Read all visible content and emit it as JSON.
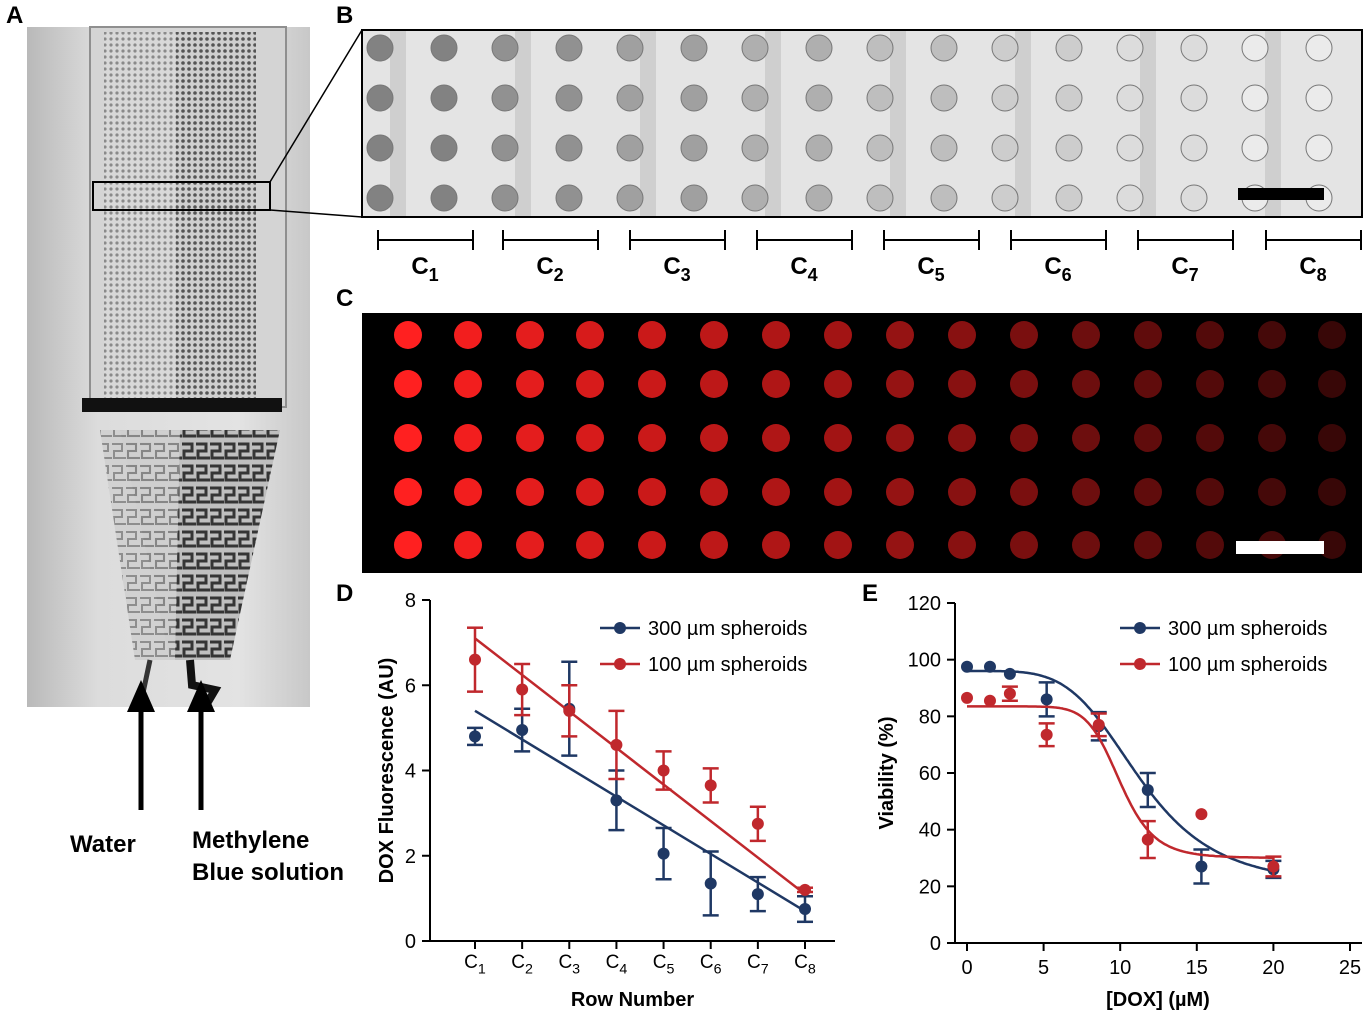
{
  "panels": {
    "a": {
      "label": "A",
      "arrow_labels": [
        "Water",
        "Methylene",
        "Blue solution"
      ]
    },
    "b": {
      "label": "B",
      "columns": [
        "1",
        "2",
        "3",
        "4",
        "5",
        "6",
        "7",
        "8"
      ],
      "column_prefix": "C"
    },
    "c": {
      "label": "C"
    },
    "d": {
      "label": "D"
    },
    "e": {
      "label": "E"
    }
  },
  "colors": {
    "navy": "#1f3864",
    "red": "#c0282d",
    "fluor_red": "#ff2020",
    "black": "#000000"
  },
  "chart_data": [
    {
      "type": "scatter",
      "panel": "D",
      "xlabel": "Row Number",
      "ylabel": "DOX Fluorescence (AU)",
      "categories": [
        "C1",
        "C2",
        "C3",
        "C4",
        "C5",
        "C6",
        "C7",
        "C8"
      ],
      "cat_base": "C",
      "cat_sub": [
        "1",
        "2",
        "3",
        "4",
        "5",
        "6",
        "7",
        "8"
      ],
      "ylim": [
        0,
        8
      ],
      "yticks": [
        0,
        2,
        4,
        6,
        8
      ],
      "legend_position": "top-right",
      "series": [
        {
          "name": "300 µm spheroids",
          "color": "#1f3864",
          "values": [
            4.8,
            4.95,
            5.45,
            3.3,
            2.05,
            1.35,
            1.1,
            0.75
          ],
          "err": [
            0.2,
            0.5,
            1.1,
            0.7,
            0.6,
            0.75,
            0.4,
            0.3
          ],
          "fit": [
            5.4,
            0.7
          ]
        },
        {
          "name": "100 µm spheroids",
          "color": "#c0282d",
          "values": [
            6.6,
            5.9,
            5.4,
            4.6,
            4.0,
            3.65,
            2.75,
            1.2
          ],
          "err": [
            0.75,
            0.6,
            0.6,
            0.8,
            0.45,
            0.4,
            0.4,
            0.05
          ],
          "fit": [
            7.1,
            1.1
          ]
        }
      ]
    },
    {
      "type": "scatter",
      "panel": "E",
      "xlabel": "[DOX] (µM)",
      "ylabel": "Viability (%)",
      "xlim": [
        0,
        25
      ],
      "ylim": [
        0,
        120
      ],
      "xticks": [
        0,
        5,
        10,
        15,
        20,
        25
      ],
      "yticks": [
        0,
        20,
        40,
        60,
        80,
        100,
        120
      ],
      "legend_position": "top-right",
      "series": [
        {
          "name": "300 µm spheroids",
          "color": "#1f3864",
          "x": [
            0,
            1.5,
            2.8,
            5.2,
            8.6,
            11.8,
            15.3,
            20
          ],
          "y": [
            97.5,
            97.5,
            95,
            86,
            76.5,
            54,
            27,
            26
          ],
          "err": [
            0,
            0,
            0,
            6,
            5,
            6,
            6,
            3
          ],
          "fit": {
            "top": 96,
            "bottom": 20,
            "ec50": 11.3,
            "hill": 4.5
          }
        },
        {
          "name": "100 µm spheroids",
          "color": "#c0282d",
          "x": [
            0,
            1.5,
            2.8,
            5.2,
            8.6,
            11.8,
            15.3,
            20
          ],
          "y": [
            86.5,
            85.5,
            88,
            73.5,
            77,
            36.5,
            45.5,
            27
          ],
          "err": [
            0,
            0,
            2.5,
            4,
            4,
            6.5,
            0,
            3.5
          ],
          "fit": {
            "top": 83.5,
            "bottom": 30,
            "ec50": 10.0,
            "hill": 9
          }
        }
      ]
    }
  ]
}
